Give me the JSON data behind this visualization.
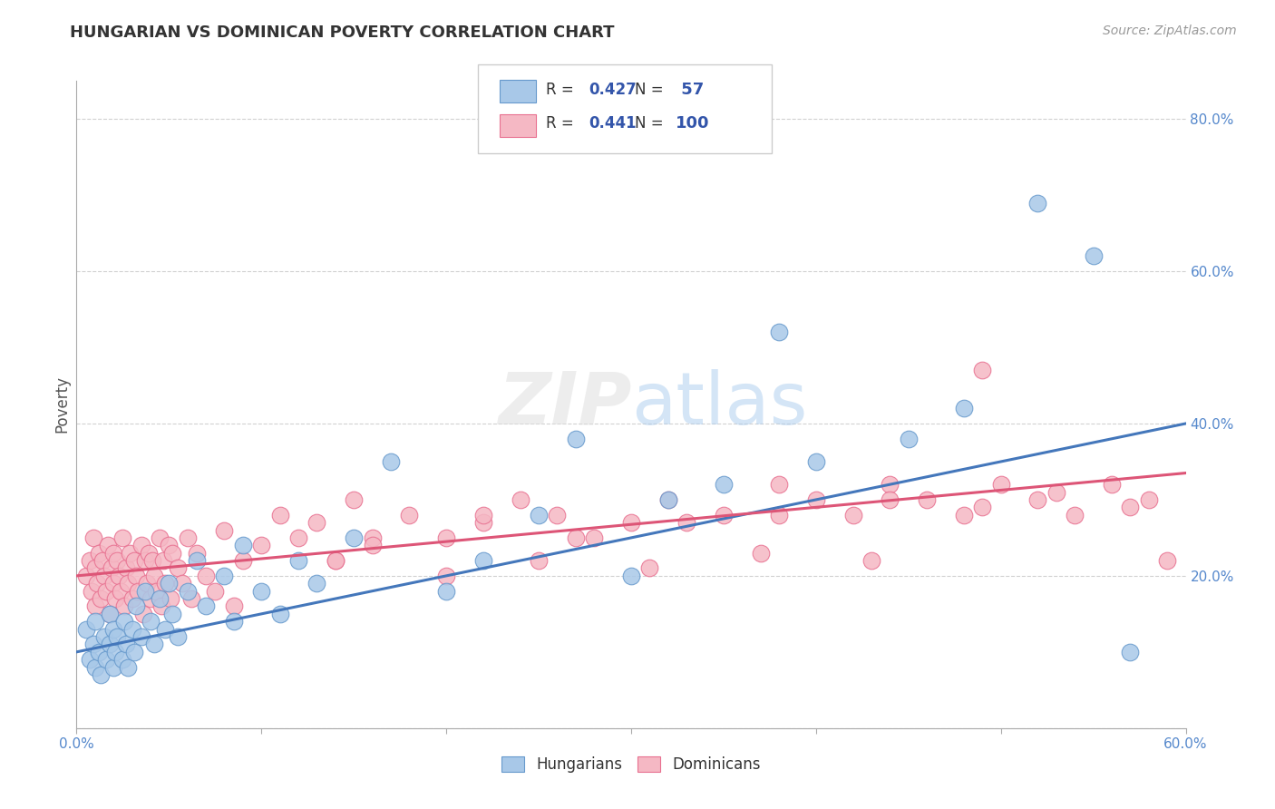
{
  "title": "HUNGARIAN VS DOMINICAN POVERTY CORRELATION CHART",
  "source_text": "Source: ZipAtlas.com",
  "ylabel": "Poverty",
  "xlim": [
    0.0,
    0.6
  ],
  "ylim": [
    0.0,
    0.85
  ],
  "ytick_positions": [
    0.0,
    0.2,
    0.4,
    0.6,
    0.8
  ],
  "ytick_labels": [
    "",
    "20.0%",
    "40.0%",
    "60.0%",
    "80.0%"
  ],
  "xtick_positions": [
    0.0,
    0.1,
    0.2,
    0.3,
    0.4,
    0.5,
    0.6
  ],
  "xtick_labels": [
    "0.0%",
    "",
    "",
    "",
    "",
    "",
    "60.0%"
  ],
  "hungarian_R": 0.427,
  "hungarian_N": 57,
  "dominican_R": 0.441,
  "dominican_N": 100,
  "hungarian_color": "#A8C8E8",
  "dominican_color": "#F5B8C4",
  "hungarian_edge_color": "#6699CC",
  "dominican_edge_color": "#E87090",
  "hungarian_line_color": "#4477BB",
  "dominican_line_color": "#DD5577",
  "background_color": "#FFFFFF",
  "grid_color": "#CCCCCC",
  "title_color": "#333333",
  "legend_color": "#3355AA",
  "hung_trend_start_y": 0.1,
  "hung_trend_end_y": 0.4,
  "dom_trend_start_y": 0.2,
  "dom_trend_end_y": 0.335,
  "hungarian_x": [
    0.005,
    0.007,
    0.009,
    0.01,
    0.01,
    0.012,
    0.013,
    0.015,
    0.016,
    0.018,
    0.018,
    0.02,
    0.02,
    0.021,
    0.022,
    0.025,
    0.026,
    0.027,
    0.028,
    0.03,
    0.031,
    0.032,
    0.035,
    0.037,
    0.04,
    0.042,
    0.045,
    0.048,
    0.05,
    0.052,
    0.055,
    0.06,
    0.065,
    0.07,
    0.08,
    0.085,
    0.09,
    0.1,
    0.11,
    0.12,
    0.13,
    0.15,
    0.17,
    0.2,
    0.22,
    0.25,
    0.27,
    0.3,
    0.32,
    0.35,
    0.38,
    0.4,
    0.45,
    0.48,
    0.52,
    0.55,
    0.57
  ],
  "hungarian_y": [
    0.13,
    0.09,
    0.11,
    0.08,
    0.14,
    0.1,
    0.07,
    0.12,
    0.09,
    0.11,
    0.15,
    0.08,
    0.13,
    0.1,
    0.12,
    0.09,
    0.14,
    0.11,
    0.08,
    0.13,
    0.1,
    0.16,
    0.12,
    0.18,
    0.14,
    0.11,
    0.17,
    0.13,
    0.19,
    0.15,
    0.12,
    0.18,
    0.22,
    0.16,
    0.2,
    0.14,
    0.24,
    0.18,
    0.15,
    0.22,
    0.19,
    0.25,
    0.35,
    0.18,
    0.22,
    0.28,
    0.38,
    0.2,
    0.3,
    0.32,
    0.52,
    0.35,
    0.38,
    0.42,
    0.69,
    0.62,
    0.1
  ],
  "dominican_x": [
    0.005,
    0.007,
    0.008,
    0.009,
    0.01,
    0.01,
    0.011,
    0.012,
    0.013,
    0.014,
    0.015,
    0.016,
    0.017,
    0.018,
    0.019,
    0.02,
    0.02,
    0.021,
    0.022,
    0.023,
    0.024,
    0.025,
    0.026,
    0.027,
    0.028,
    0.029,
    0.03,
    0.031,
    0.032,
    0.033,
    0.035,
    0.036,
    0.037,
    0.038,
    0.039,
    0.04,
    0.041,
    0.042,
    0.043,
    0.045,
    0.046,
    0.047,
    0.048,
    0.05,
    0.051,
    0.052,
    0.055,
    0.057,
    0.06,
    0.062,
    0.065,
    0.07,
    0.075,
    0.08,
    0.085,
    0.09,
    0.1,
    0.11,
    0.12,
    0.13,
    0.14,
    0.15,
    0.16,
    0.18,
    0.2,
    0.22,
    0.24,
    0.26,
    0.28,
    0.3,
    0.32,
    0.35,
    0.38,
    0.4,
    0.42,
    0.44,
    0.46,
    0.48,
    0.5,
    0.52,
    0.54,
    0.56,
    0.58,
    0.49,
    0.43,
    0.37,
    0.31,
    0.25,
    0.2,
    0.16,
    0.14,
    0.22,
    0.27,
    0.33,
    0.38,
    0.44,
    0.49,
    0.53,
    0.57,
    0.59
  ],
  "dominican_y": [
    0.2,
    0.22,
    0.18,
    0.25,
    0.16,
    0.21,
    0.19,
    0.23,
    0.17,
    0.22,
    0.2,
    0.18,
    0.24,
    0.15,
    0.21,
    0.19,
    0.23,
    0.17,
    0.22,
    0.2,
    0.18,
    0.25,
    0.16,
    0.21,
    0.19,
    0.23,
    0.17,
    0.22,
    0.2,
    0.18,
    0.24,
    0.15,
    0.22,
    0.19,
    0.23,
    0.17,
    0.22,
    0.2,
    0.18,
    0.25,
    0.16,
    0.22,
    0.19,
    0.24,
    0.17,
    0.23,
    0.21,
    0.19,
    0.25,
    0.17,
    0.23,
    0.2,
    0.18,
    0.26,
    0.16,
    0.22,
    0.24,
    0.28,
    0.25,
    0.27,
    0.22,
    0.3,
    0.25,
    0.28,
    0.25,
    0.27,
    0.3,
    0.28,
    0.25,
    0.27,
    0.3,
    0.28,
    0.32,
    0.3,
    0.28,
    0.32,
    0.3,
    0.28,
    0.32,
    0.3,
    0.28,
    0.32,
    0.3,
    0.47,
    0.22,
    0.23,
    0.21,
    0.22,
    0.2,
    0.24,
    0.22,
    0.28,
    0.25,
    0.27,
    0.28,
    0.3,
    0.29,
    0.31,
    0.29,
    0.22
  ]
}
